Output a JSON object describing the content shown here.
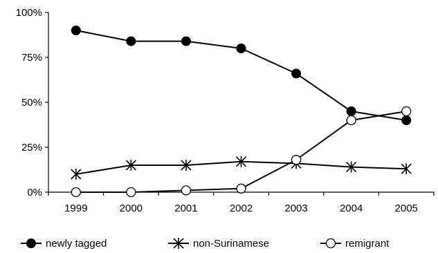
{
  "chart_data": {
    "type": "line",
    "categories": [
      "1999",
      "2000",
      "2001",
      "2002",
      "2003",
      "2004",
      "2005"
    ],
    "ylim": [
      0,
      100
    ],
    "yticks": [
      0,
      25,
      50,
      75,
      100
    ],
    "ytick_labels": [
      "0%",
      "25%",
      "50%",
      "75%",
      "100%"
    ],
    "grid": false,
    "legend_position": "bottom",
    "series": [
      {
        "name": "newly tagged",
        "marker": "filled-circle",
        "values": [
          90,
          84,
          84,
          80,
          66,
          45,
          40
        ]
      },
      {
        "name": "non-Surinamese",
        "marker": "asterisk",
        "values": [
          10,
          15,
          15,
          17,
          16,
          14,
          13
        ]
      },
      {
        "name": "remigrant",
        "marker": "open-circle",
        "values": [
          0,
          0,
          1,
          2,
          18,
          40,
          45
        ]
      }
    ],
    "colors": {
      "line": "#000000",
      "marker_fill": "#000000",
      "open_fill": "#ffffff"
    }
  }
}
